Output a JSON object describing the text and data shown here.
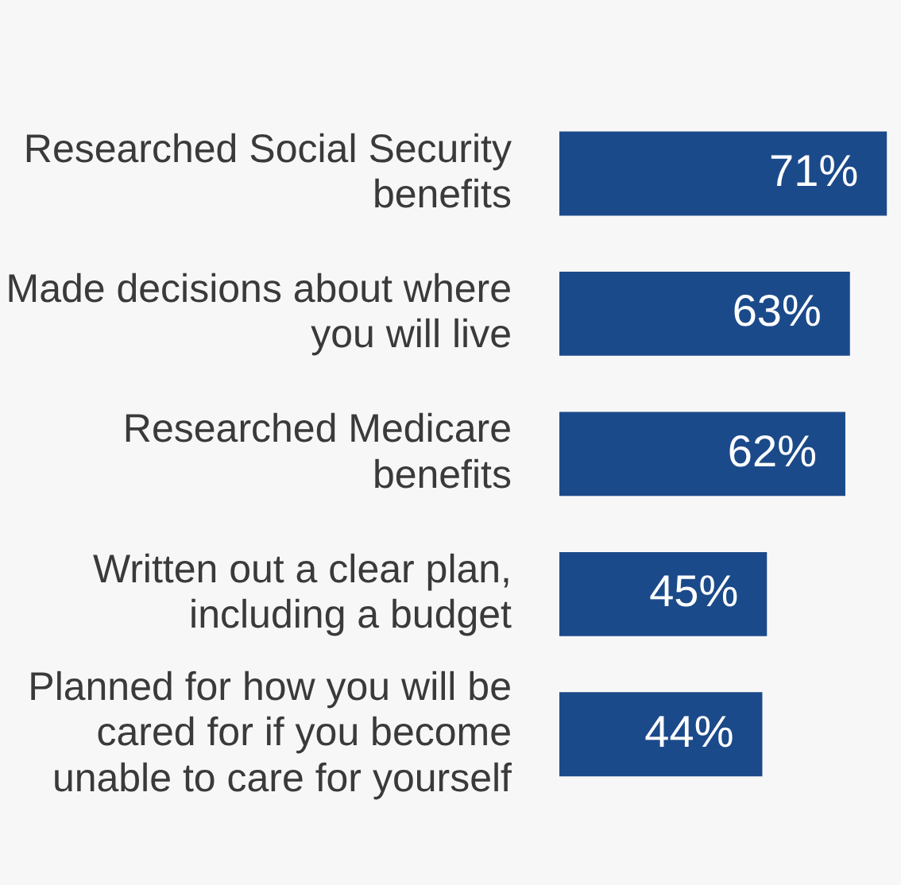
{
  "chart_data": {
    "type": "bar",
    "orientation": "horizontal",
    "categories": [
      "Researched Social Security benefits",
      "Made decisions about where you will live",
      "Researched Medicare benefits",
      "Written out a clear plan, including a budget",
      "Planned for how you will be cared for if you become unable to care for yourself"
    ],
    "values": [
      71,
      63,
      62,
      45,
      44
    ],
    "value_labels": [
      "71%",
      "63%",
      "62%",
      "45%",
      "44%"
    ],
    "color": "#1b4a8a",
    "xlim": [
      0,
      72
    ],
    "tick_labels": "y",
    "legend": false
  }
}
